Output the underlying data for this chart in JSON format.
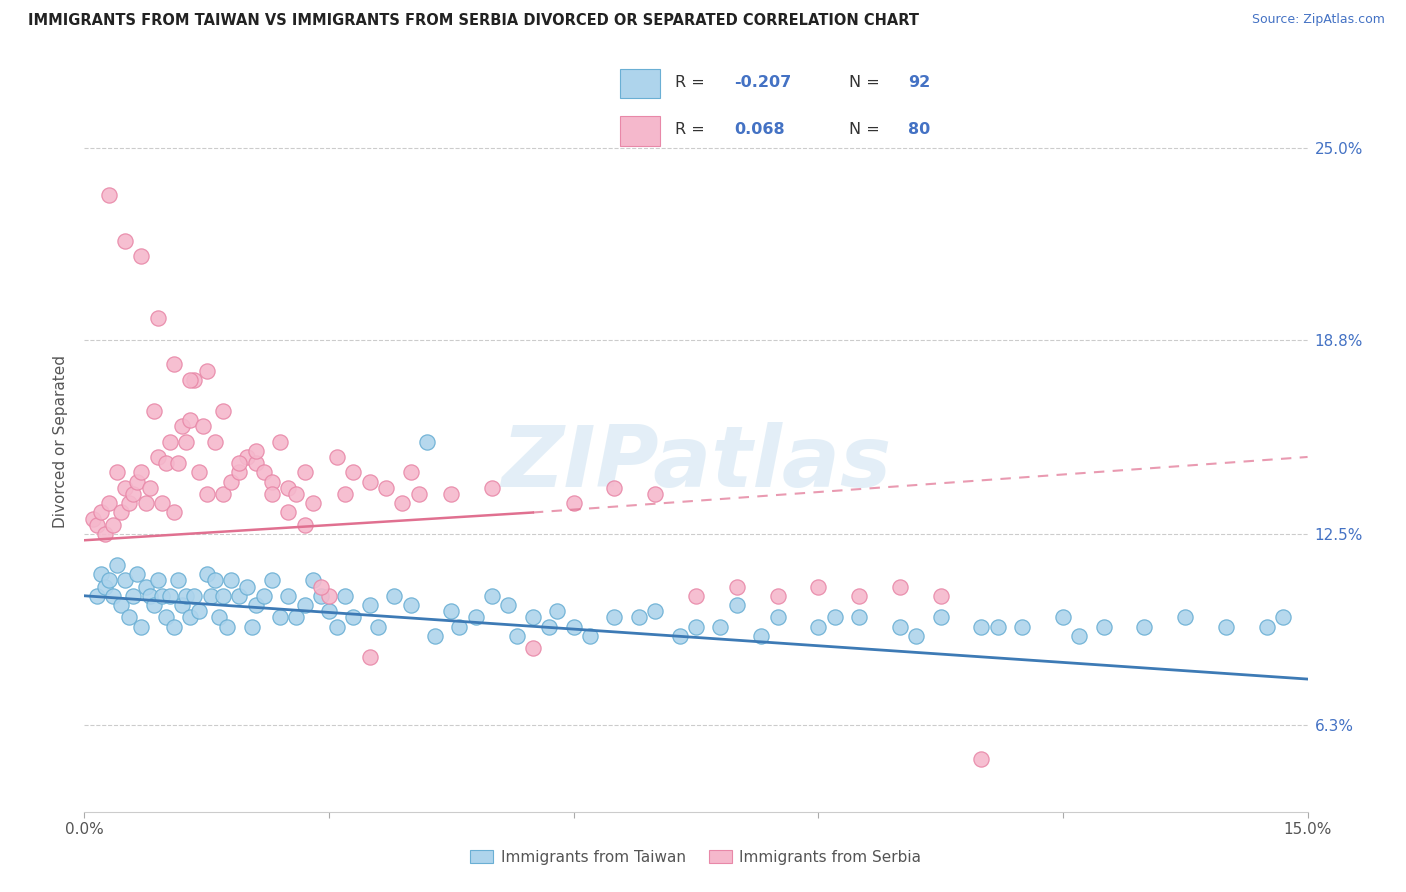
{
  "title": "IMMIGRANTS FROM TAIWAN VS IMMIGRANTS FROM SERBIA DIVORCED OR SEPARATED CORRELATION CHART",
  "source": "Source: ZipAtlas.com",
  "ylabel": "Divorced or Separated",
  "ytick_values": [
    6.3,
    12.5,
    18.8,
    25.0
  ],
  "ytick_labels": [
    "6.3%",
    "12.5%",
    "18.8%",
    "25.0%"
  ],
  "xlim": [
    0.0,
    15.0
  ],
  "ylim": [
    3.5,
    27.5
  ],
  "legend_blue_r": "-0.207",
  "legend_blue_n": "92",
  "legend_pink_r": "0.068",
  "legend_pink_n": "80",
  "color_blue_fill": "#aed4ec",
  "color_blue_edge": "#6aafd4",
  "color_blue_line": "#3d7ab5",
  "color_pink_fill": "#f5b8cc",
  "color_pink_edge": "#e888a8",
  "color_pink_line": "#e07090",
  "blue_line_x0": 0.0,
  "blue_line_y0": 10.5,
  "blue_line_x1": 15.0,
  "blue_line_y1": 7.8,
  "pink_solid_x0": 0.0,
  "pink_solid_y0": 12.3,
  "pink_solid_x1": 5.5,
  "pink_solid_y1": 13.2,
  "pink_dash_x0": 5.5,
  "pink_dash_y0": 13.2,
  "pink_dash_x1": 15.0,
  "pink_dash_y1": 15.0,
  "watermark": "ZIPatlas",
  "taiwan_x": [
    0.15,
    0.2,
    0.25,
    0.3,
    0.35,
    0.4,
    0.45,
    0.5,
    0.55,
    0.6,
    0.65,
    0.7,
    0.75,
    0.8,
    0.85,
    0.9,
    0.95,
    1.0,
    1.05,
    1.1,
    1.15,
    1.2,
    1.25,
    1.3,
    1.35,
    1.4,
    1.5,
    1.55,
    1.6,
    1.65,
    1.7,
    1.75,
    1.8,
    1.9,
    2.0,
    2.05,
    2.1,
    2.2,
    2.3,
    2.4,
    2.5,
    2.6,
    2.7,
    2.8,
    2.9,
    3.0,
    3.1,
    3.2,
    3.3,
    3.5,
    3.6,
    3.8,
    4.0,
    4.2,
    4.5,
    4.8,
    5.0,
    5.2,
    5.5,
    5.8,
    6.0,
    6.5,
    7.0,
    7.5,
    8.0,
    8.5,
    9.0,
    9.5,
    10.0,
    10.5,
    11.0,
    11.5,
    12.0,
    12.5,
    13.0,
    13.5,
    14.0,
    14.5,
    14.7,
    4.3,
    4.6,
    5.3,
    5.7,
    6.2,
    6.8,
    7.3,
    7.8,
    8.3,
    9.2,
    10.2,
    11.2,
    12.2
  ],
  "taiwan_y": [
    10.5,
    11.2,
    10.8,
    11.0,
    10.5,
    11.5,
    10.2,
    11.0,
    9.8,
    10.5,
    11.2,
    9.5,
    10.8,
    10.5,
    10.2,
    11.0,
    10.5,
    9.8,
    10.5,
    9.5,
    11.0,
    10.2,
    10.5,
    9.8,
    10.5,
    10.0,
    11.2,
    10.5,
    11.0,
    9.8,
    10.5,
    9.5,
    11.0,
    10.5,
    10.8,
    9.5,
    10.2,
    10.5,
    11.0,
    9.8,
    10.5,
    9.8,
    10.2,
    11.0,
    10.5,
    10.0,
    9.5,
    10.5,
    9.8,
    10.2,
    9.5,
    10.5,
    10.2,
    15.5,
    10.0,
    9.8,
    10.5,
    10.2,
    9.8,
    10.0,
    9.5,
    9.8,
    10.0,
    9.5,
    10.2,
    9.8,
    9.5,
    9.8,
    9.5,
    9.8,
    9.5,
    9.5,
    9.8,
    9.5,
    9.5,
    9.8,
    9.5,
    9.5,
    9.8,
    9.2,
    9.5,
    9.2,
    9.5,
    9.2,
    9.8,
    9.2,
    9.5,
    9.2,
    9.8,
    9.2,
    9.5,
    9.2
  ],
  "serbia_x": [
    0.1,
    0.15,
    0.2,
    0.25,
    0.3,
    0.35,
    0.4,
    0.45,
    0.5,
    0.55,
    0.6,
    0.65,
    0.7,
    0.75,
    0.8,
    0.85,
    0.9,
    0.95,
    1.0,
    1.05,
    1.1,
    1.15,
    1.2,
    1.25,
    1.3,
    1.35,
    1.4,
    1.45,
    1.5,
    1.6,
    1.7,
    1.8,
    1.9,
    2.0,
    2.1,
    2.2,
    2.3,
    2.4,
    2.5,
    2.6,
    2.7,
    2.8,
    3.0,
    3.2,
    3.5,
    4.0,
    4.5,
    5.0,
    5.5,
    6.0,
    6.5,
    7.0,
    7.5,
    8.0,
    8.5,
    9.0,
    9.5,
    10.0,
    10.5,
    11.0,
    0.3,
    0.5,
    0.7,
    0.9,
    1.1,
    1.3,
    1.5,
    1.7,
    1.9,
    2.1,
    2.3,
    2.5,
    2.7,
    2.9,
    3.1,
    3.3,
    3.5,
    3.7,
    3.9,
    4.1
  ],
  "serbia_y": [
    13.0,
    12.8,
    13.2,
    12.5,
    13.5,
    12.8,
    14.5,
    13.2,
    14.0,
    13.5,
    13.8,
    14.2,
    14.5,
    13.5,
    14.0,
    16.5,
    15.0,
    13.5,
    14.8,
    15.5,
    13.2,
    14.8,
    16.0,
    15.5,
    16.2,
    17.5,
    14.5,
    16.0,
    13.8,
    15.5,
    13.8,
    14.2,
    14.5,
    15.0,
    14.8,
    14.5,
    14.2,
    15.5,
    14.0,
    13.8,
    14.5,
    13.5,
    10.5,
    13.8,
    14.2,
    14.5,
    13.8,
    14.0,
    8.8,
    13.5,
    14.0,
    13.8,
    10.5,
    10.8,
    10.5,
    10.8,
    10.5,
    10.8,
    10.5,
    5.2,
    23.5,
    22.0,
    21.5,
    19.5,
    18.0,
    17.5,
    17.8,
    16.5,
    14.8,
    15.2,
    13.8,
    13.2,
    12.8,
    10.8,
    15.0,
    14.5,
    8.5,
    14.0,
    13.5,
    13.8
  ]
}
